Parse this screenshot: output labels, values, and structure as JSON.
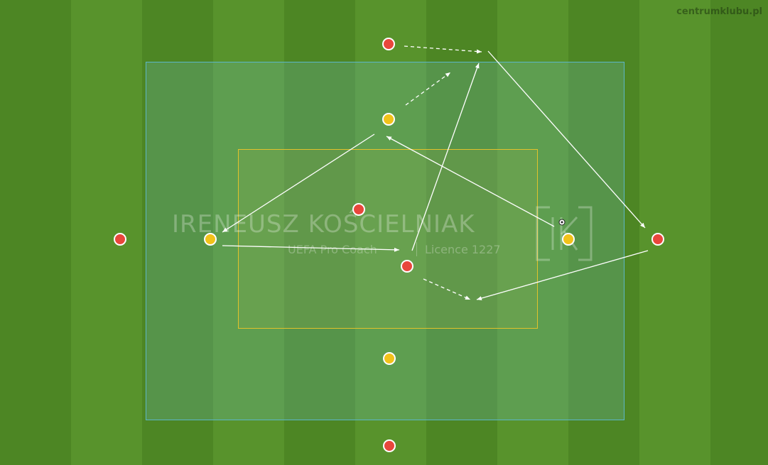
{
  "brand": "centrumklubu.pl",
  "watermark": {
    "name": "IRENEUSZ KOŚCIELNIAK",
    "subtitle": "UEFA Pro Coach",
    "licence": "Licence 1227"
  },
  "colors": {
    "team_red": "#e8473c",
    "team_yellow": "#f2c21a",
    "outer_zone_border": "#5cb6c8",
    "inner_zone_border": "#e2c22b",
    "arrow": "#ffffff"
  },
  "players": [
    {
      "id": "red-top",
      "team": "red"
    },
    {
      "id": "yellow-top",
      "team": "yellow"
    },
    {
      "id": "red-center-upper",
      "team": "red"
    },
    {
      "id": "red-left-outside",
      "team": "red"
    },
    {
      "id": "yellow-left",
      "team": "yellow"
    },
    {
      "id": "red-center-lower",
      "team": "red"
    },
    {
      "id": "yellow-right",
      "team": "yellow"
    },
    {
      "id": "red-right-outside",
      "team": "red"
    },
    {
      "id": "yellow-bottom",
      "team": "yellow"
    },
    {
      "id": "red-bottom",
      "team": "red"
    }
  ],
  "movements": [
    {
      "type": "pass",
      "from": "yellow-top",
      "to": "yellow-left"
    },
    {
      "type": "pass",
      "from": "yellow-left",
      "to": "red-center-lower"
    },
    {
      "type": "pass",
      "from": "red-center-lower",
      "to": "red-top"
    },
    {
      "type": "pass",
      "from": "red-top",
      "to": "red-right-outside"
    },
    {
      "type": "pass",
      "from": "red-right-outside",
      "to": "red-center-lower"
    },
    {
      "type": "pass",
      "from": "yellow-right",
      "to": "yellow-top"
    },
    {
      "type": "run",
      "from": "red-top"
    },
    {
      "type": "run",
      "from": "yellow-top"
    },
    {
      "type": "run",
      "from": "red-center-lower"
    }
  ]
}
